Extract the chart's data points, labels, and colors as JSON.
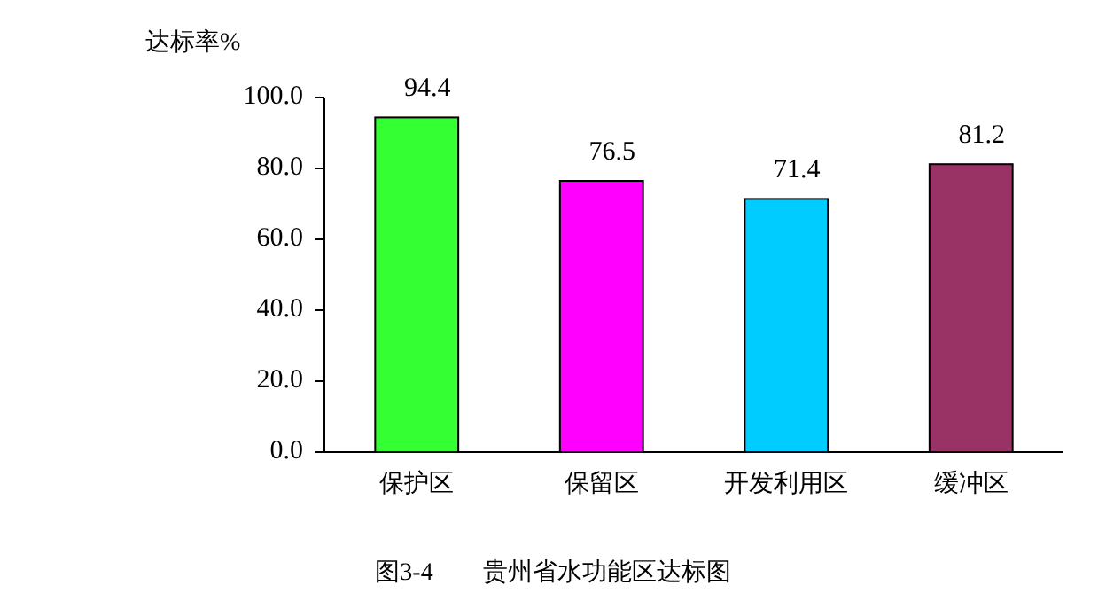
{
  "chart_data": {
    "type": "bar",
    "ylabel": "达标率%",
    "categories": [
      "保护区",
      "保留区",
      "开发利用区",
      "缓冲区"
    ],
    "values": [
      94.4,
      76.5,
      71.4,
      81.2
    ],
    "colors": [
      "#33ff33",
      "#ff00ff",
      "#00ccff",
      "#993366"
    ],
    "ylim": [
      0,
      100
    ],
    "yticks": [
      {
        "value": 0,
        "label": "0.0"
      },
      {
        "value": 20,
        "label": "20.0"
      },
      {
        "value": 40,
        "label": "40.0"
      },
      {
        "value": 60,
        "label": "60.0"
      },
      {
        "value": 80,
        "label": "80.0"
      },
      {
        "value": 100,
        "label": "100.0"
      }
    ],
    "data_labels": true,
    "grid": false,
    "annotations": [
      "图3-4　　贵州省水功能区达标图"
    ]
  }
}
